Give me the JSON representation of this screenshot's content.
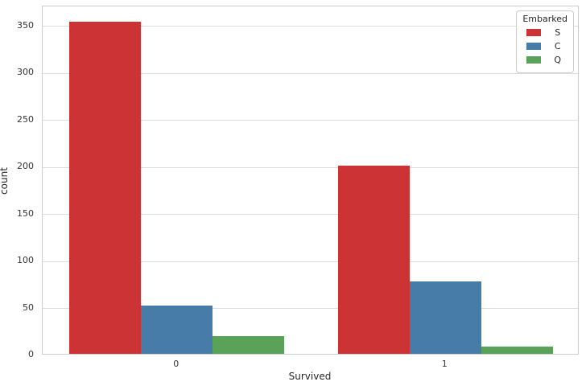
{
  "figure": {
    "background": "#ffffff"
  },
  "chart_data": {
    "type": "bar",
    "title": "",
    "xlabel": "Survived",
    "ylabel": "count",
    "categories": [
      "0",
      "1"
    ],
    "series": [
      {
        "name": "S",
        "color": "#cb3335",
        "values": [
          353,
          200
        ]
      },
      {
        "name": "C",
        "color": "#477ca8",
        "values": [
          51,
          77
        ]
      },
      {
        "name": "Q",
        "color": "#59a257",
        "values": [
          19,
          8
        ]
      }
    ],
    "legend": {
      "title": "Embarked",
      "position": "upper-right"
    },
    "ylim": [
      0,
      371
    ],
    "yticks": [
      0,
      50,
      100,
      150,
      200,
      250,
      300,
      350
    ],
    "grid": "horizontal",
    "group_width_fraction": 0.8,
    "styles": {
      "grid_color": "#dcdcdc",
      "spine_color": "#cccccc",
      "text_color": "#262626",
      "tick_color": "#333333"
    }
  }
}
